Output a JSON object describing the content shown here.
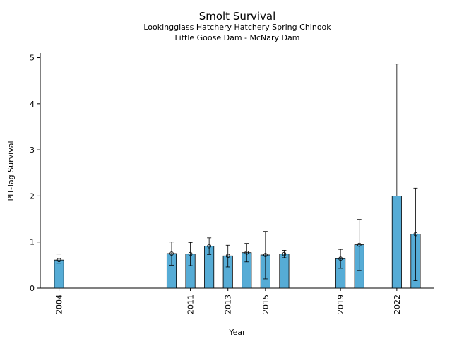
{
  "chart_data": {
    "type": "bar",
    "title": "Smolt Survival",
    "subtitle": [
      "Lookingglass Hatchery Hatchery Spring Chinook",
      "Little Goose Dam - McNary Dam"
    ],
    "xlabel": "Year",
    "ylabel": "PIT-Tag Survival",
    "xlim": [
      2003.0,
      2024.0
    ],
    "ylim": [
      0,
      5.1
    ],
    "x_ticks": [
      2004,
      2011,
      2013,
      2015,
      2019,
      2022
    ],
    "y_ticks": [
      0,
      1,
      2,
      3,
      4,
      5
    ],
    "bar_color": "#56acd6",
    "series": [
      {
        "name": "PIT-Tag Survival",
        "x": [
          2004,
          2010,
          2011,
          2012,
          2013,
          2014,
          2015,
          2016,
          2019,
          2020,
          2022,
          2023
        ],
        "values": [
          0.61,
          0.75,
          0.74,
          0.91,
          0.7,
          0.77,
          0.72,
          0.74,
          0.64,
          0.94,
          2.0,
          1.17
        ],
        "err_low": [
          0.54,
          0.5,
          0.49,
          0.73,
          0.46,
          0.57,
          0.2,
          0.66,
          0.43,
          0.38,
          null,
          0.16
        ],
        "err_high": [
          0.74,
          1.0,
          0.99,
          1.09,
          0.93,
          0.97,
          1.23,
          0.82,
          0.84,
          1.49,
          4.86,
          2.17
        ],
        "marker": [
          true,
          true,
          true,
          true,
          true,
          true,
          true,
          true,
          true,
          true,
          false,
          true
        ]
      }
    ]
  }
}
